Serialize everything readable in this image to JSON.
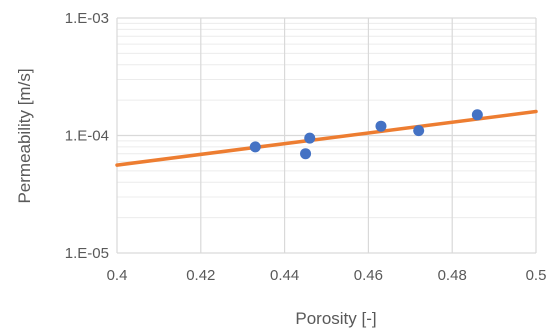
{
  "chart_data": {
    "type": "scatter",
    "title": "",
    "xlabel": "Porosity [-]",
    "ylabel": "Permeability [m/s]",
    "xlim": [
      0.4,
      0.5
    ],
    "ylim": [
      1e-05,
      0.001
    ],
    "y_scale": "log",
    "x_ticks": [
      0.4,
      0.42,
      0.44,
      0.46,
      0.48,
      0.5
    ],
    "x_tick_labels": [
      "0.4",
      "0.42",
      "0.44",
      "0.46",
      "0.48",
      "0.5"
    ],
    "y_ticks": [
      1e-05,
      0.0001,
      0.001
    ],
    "y_tick_labels": [
      "1.E-05",
      "1.E-04",
      "1.E-03"
    ],
    "grid": true,
    "minor_grid_y": true,
    "legend": "none",
    "series": [
      {
        "type": "scatter",
        "color": "#4472C4",
        "x": [
          0.433,
          0.445,
          0.446,
          0.463,
          0.472,
          0.486
        ],
        "y": [
          8e-05,
          7e-05,
          9.5e-05,
          0.00012,
          0.00011,
          0.00015
        ]
      },
      {
        "type": "line",
        "color": "#ED7D31",
        "x": [
          0.4,
          0.5
        ],
        "y": [
          5.6e-05,
          0.00016
        ]
      }
    ]
  }
}
